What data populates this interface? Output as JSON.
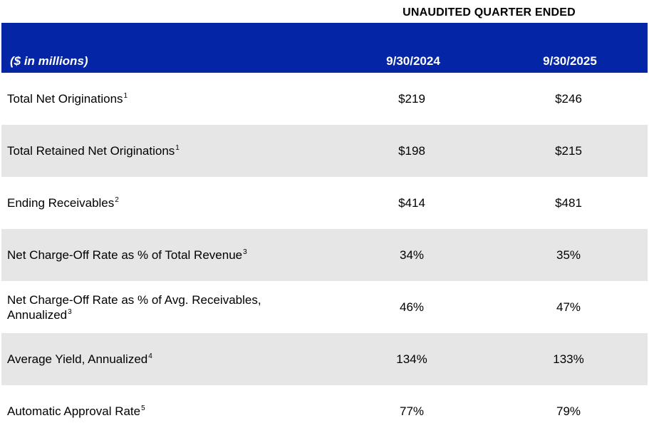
{
  "super_header": "UNAUDITED QUARTER ENDED",
  "header": {
    "units": "($ in millions)",
    "col1": "9/30/2024",
    "col2": "9/30/2025"
  },
  "rows": [
    {
      "label": "Total Net Originations",
      "footnote": "1",
      "v1": "$219",
      "v2": "$246"
    },
    {
      "label": "Total Retained Net Originations",
      "footnote": "1",
      "v1": "$198",
      "v2": "$215"
    },
    {
      "label": "Ending Receivables",
      "footnote": "2",
      "v1": "$414",
      "v2": "$481"
    },
    {
      "label": "Net Charge-Off Rate as % of Total Revenue",
      "footnote": "3",
      "v1": "34%",
      "v2": "35%"
    },
    {
      "label": "Net Charge-Off Rate as % of Avg. Receivables, Annualized",
      "footnote": "3",
      "v1": "46%",
      "v2": "47%"
    },
    {
      "label": "Average Yield, Annualized",
      "footnote": "4",
      "v1": "134%",
      "v2": "133%"
    },
    {
      "label": "Automatic Approval Rate",
      "footnote": "5",
      "v1": "77%",
      "v2": "79%"
    }
  ],
  "colors": {
    "header_bg": "#0426a6",
    "shade": "#e6e6e6"
  }
}
